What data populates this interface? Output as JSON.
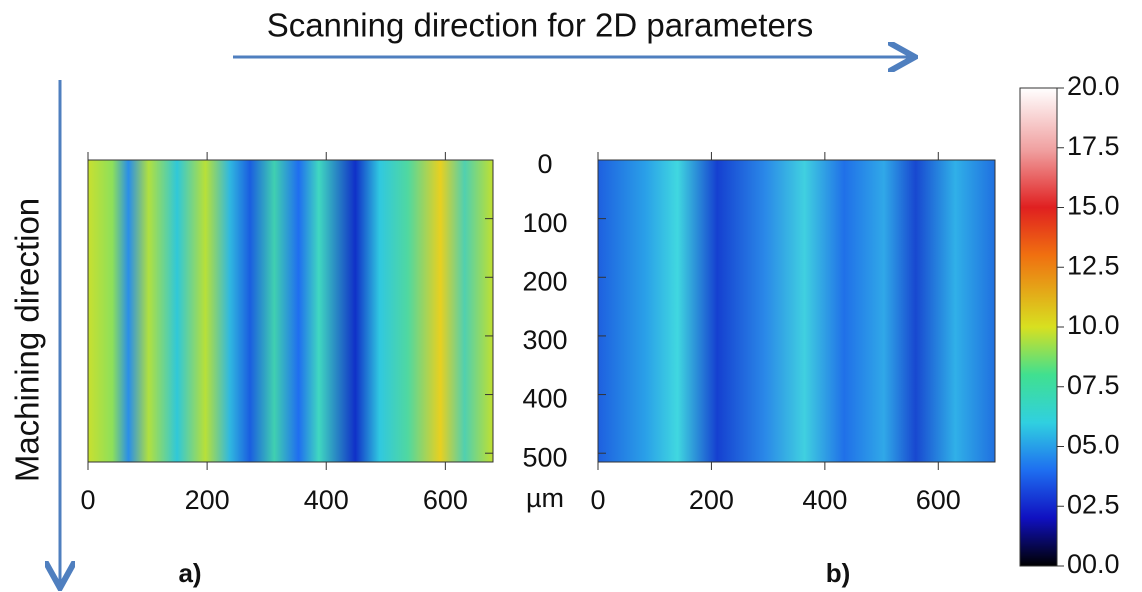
{
  "title": "Scanning direction for 2D parameters",
  "side_label": "Machining direction",
  "unit": "µm",
  "y_axis": {
    "lim": [
      0,
      515
    ],
    "ticks": [
      0,
      100,
      200,
      300,
      400,
      500
    ]
  },
  "panels": [
    {
      "label": "a)",
      "xlim": [
        0,
        680
      ],
      "xticks": [
        0,
        200,
        400,
        600
      ]
    },
    {
      "label": "b)",
      "xlim": [
        0,
        700
      ],
      "xticks": [
        0,
        200,
        400,
        600
      ]
    }
  ],
  "colorbar": {
    "lim": [
      0,
      20
    ],
    "ticks": [
      {
        "value": 0,
        "label": "00.0"
      },
      {
        "value": 2.5,
        "label": "02.5"
      },
      {
        "value": 5,
        "label": "05.0"
      },
      {
        "value": 7.5,
        "label": "07.5"
      },
      {
        "value": 10,
        "label": "10.0"
      },
      12.5,
      {
        "value": 15,
        "label": "15.0"
      },
      17.5,
      {
        "value": 20,
        "label": "20.0"
      }
    ]
  }
}
